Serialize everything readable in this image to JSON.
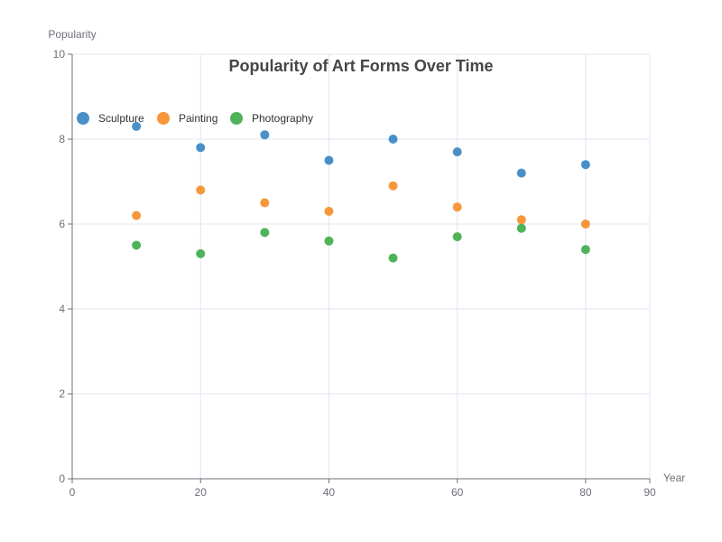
{
  "chart_data": {
    "type": "scatter",
    "title": "Popularity of Art Forms Over Time",
    "xlabel": "Year",
    "ylabel": "Popularity",
    "xlim": [
      0,
      90
    ],
    "ylim": [
      0,
      10
    ],
    "x_ticks": [
      0,
      20,
      40,
      60,
      80,
      90
    ],
    "y_ticks": [
      0,
      2,
      4,
      6,
      8,
      10
    ],
    "grid": true,
    "legend_position": "top-left",
    "x": [
      10,
      20,
      30,
      40,
      50,
      60,
      70,
      80
    ],
    "series": [
      {
        "name": "Sculpture",
        "color": "#4a90c8",
        "values": [
          8.3,
          7.8,
          8.1,
          7.5,
          8.0,
          7.7,
          7.2,
          7.4
        ]
      },
      {
        "name": "Painting",
        "color": "#f7973a",
        "values": [
          6.2,
          6.8,
          6.5,
          6.3,
          6.9,
          6.4,
          6.1,
          6.0
        ]
      },
      {
        "name": "Photography",
        "color": "#4fb35a",
        "values": [
          5.5,
          5.3,
          5.8,
          5.6,
          5.2,
          5.7,
          5.9,
          5.4
        ]
      }
    ]
  }
}
